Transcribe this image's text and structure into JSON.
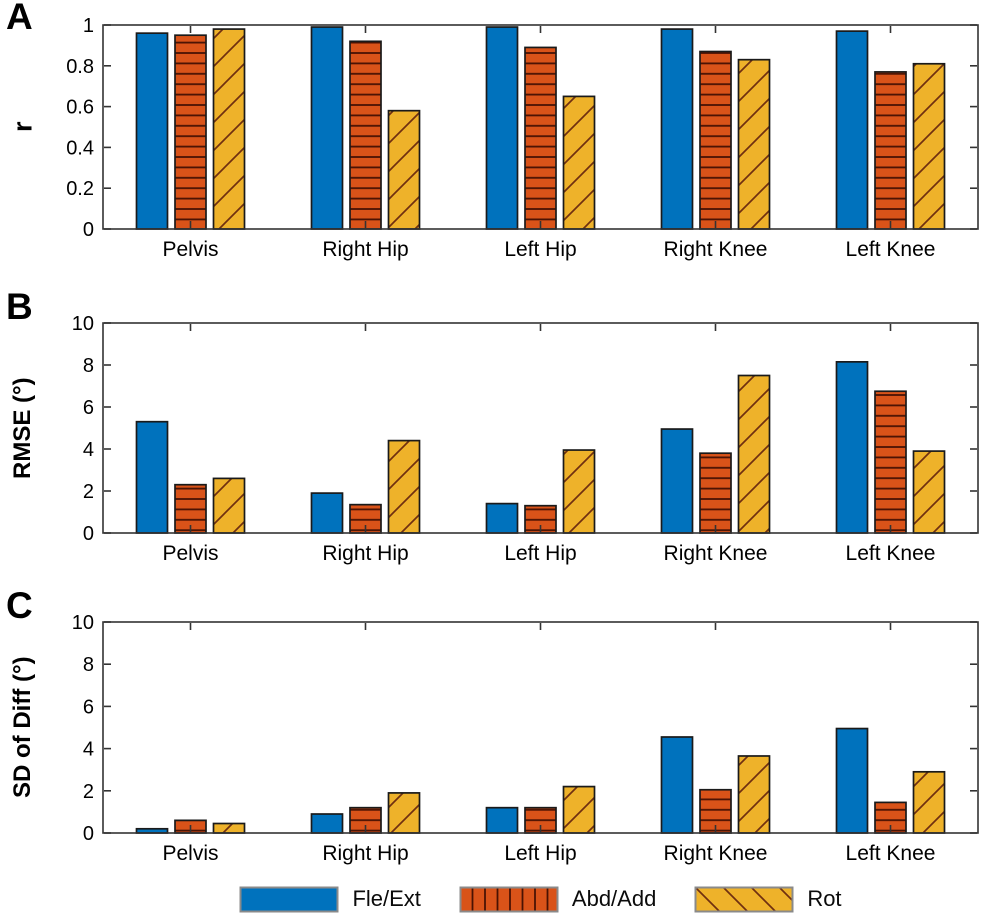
{
  "figure": {
    "panels": [
      {
        "letter": "A",
        "ylabel": "r"
      },
      {
        "letter": "B",
        "ylabel": "RMSE (°)"
      },
      {
        "letter": "C",
        "ylabel": "SD of Diff (°)"
      }
    ],
    "legend": [
      {
        "label": "Fle/Ext",
        "hatch": "solid",
        "color_key": "fle_ext_blue"
      },
      {
        "label": "Abd/Add",
        "hatch": "vertical-lines",
        "color_key": "abd_add_orange"
      },
      {
        "label": "Rot",
        "hatch": "diagonal-lines-back",
        "color_key": "rot_yellow"
      }
    ]
  },
  "colors": {
    "fle_ext_blue": "#0072BD",
    "abd_add_orange": "#D95319",
    "rot_yellow": "#EEB22A",
    "hatch_line_orange": "#4a1203",
    "hatch_line_yellow": "#703010",
    "bar_edge": "#1a1a1a",
    "axis": "#333333",
    "text": "#000000",
    "legend_swatch_border": "#8a8a8a"
  },
  "chart_data": [
    {
      "type": "bar",
      "panel": "A",
      "categories": [
        "Pelvis",
        "Right Hip",
        "Left Hip",
        "Right Knee",
        "Left Knee"
      ],
      "series": [
        {
          "name": "Fle/Ext",
          "hatch": "solid",
          "values": [
            0.96,
            0.99,
            0.99,
            0.98,
            0.97
          ]
        },
        {
          "name": "Abd/Add",
          "hatch": "horizontal-lines",
          "values": [
            0.95,
            0.92,
            0.89,
            0.87,
            0.77
          ]
        },
        {
          "name": "Rot",
          "hatch": "diagonal-lines",
          "values": [
            0.98,
            0.58,
            0.65,
            0.83,
            0.81
          ]
        }
      ],
      "xlabel": "",
      "ylabel": "r",
      "ylim": [
        0,
        1
      ],
      "yticks": [
        0,
        0.2,
        0.4,
        0.6,
        0.8,
        1
      ],
      "ytick_labels": [
        "0",
        "0.2",
        "0.4",
        "0.6",
        "0.8",
        "1"
      ],
      "grid": false,
      "legend_position": "none"
    },
    {
      "type": "bar",
      "panel": "B",
      "categories": [
        "Pelvis",
        "Right Hip",
        "Left Hip",
        "Right Knee",
        "Left Knee"
      ],
      "series": [
        {
          "name": "Fle/Ext",
          "hatch": "solid",
          "values": [
            5.3,
            1.9,
            1.4,
            4.95,
            8.15
          ]
        },
        {
          "name": "Abd/Add",
          "hatch": "horizontal-lines",
          "values": [
            2.3,
            1.35,
            1.3,
            3.8,
            6.75
          ]
        },
        {
          "name": "Rot",
          "hatch": "diagonal-lines",
          "values": [
            2.6,
            4.4,
            3.95,
            7.5,
            3.9
          ]
        }
      ],
      "xlabel": "",
      "ylabel": "RMSE (°)",
      "ylim": [
        0,
        10
      ],
      "yticks": [
        0,
        2,
        4,
        6,
        8,
        10
      ],
      "ytick_labels": [
        "0",
        "2",
        "4",
        "6",
        "8",
        "10"
      ],
      "grid": false,
      "legend_position": "none"
    },
    {
      "type": "bar",
      "panel": "C",
      "categories": [
        "Pelvis",
        "Right Hip",
        "Left Hip",
        "Right Knee",
        "Left Knee"
      ],
      "series": [
        {
          "name": "Fle/Ext",
          "hatch": "solid",
          "values": [
            0.2,
            0.9,
            1.2,
            4.55,
            4.95
          ]
        },
        {
          "name": "Abd/Add",
          "hatch": "horizontal-lines",
          "values": [
            0.6,
            1.2,
            1.2,
            2.05,
            1.45
          ]
        },
        {
          "name": "Rot",
          "hatch": "diagonal-lines",
          "values": [
            0.45,
            1.9,
            2.2,
            3.65,
            2.9
          ]
        }
      ],
      "xlabel": "",
      "ylabel": "SD of Diff (°)",
      "ylim": [
        0,
        10
      ],
      "yticks": [
        0,
        2,
        4,
        6,
        8,
        10
      ],
      "ytick_labels": [
        "0",
        "2",
        "4",
        "6",
        "8",
        "10"
      ],
      "grid": false,
      "legend_position": "bottom"
    }
  ]
}
